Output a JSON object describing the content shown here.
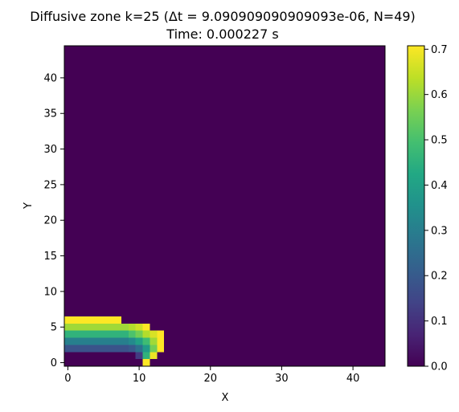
{
  "chart_data": {
    "type": "heatmap",
    "title_line1": "Diffusive zone k=25 (Δt = 9.090909090909093e-06, N=49)",
    "title_line2": "Time: 0.000227 s",
    "xlabel": "X",
    "ylabel": "Y",
    "xlim": [
      -0.5,
      44.5
    ],
    "ylim": [
      -0.5,
      44.5
    ],
    "xticks": [
      "0",
      "10",
      "20",
      "30",
      "40"
    ],
    "yticks": [
      "0",
      "5",
      "10",
      "15",
      "20",
      "25",
      "30",
      "35",
      "40"
    ],
    "colorbar": {
      "colormap": "viridis",
      "range": [
        0.0,
        0.7
      ],
      "ticks": [
        "0.0",
        "0.1",
        "0.2",
        "0.3",
        "0.4",
        "0.5",
        "0.6",
        "0.7"
      ]
    },
    "background_value": 0.0,
    "cells": [
      {
        "y": 6,
        "x_from": 0,
        "x_to": 7,
        "value": 0.7
      },
      {
        "y": 5,
        "x_from": 0,
        "x_to": 8,
        "value": 0.6
      },
      {
        "y": 5,
        "x_from": 9,
        "x_to": 9,
        "value": 0.62
      },
      {
        "y": 5,
        "x_from": 10,
        "x_to": 10,
        "value": 0.65
      },
      {
        "y": 5,
        "x_from": 11,
        "x_to": 11,
        "value": 0.7
      },
      {
        "y": 4,
        "x_from": 0,
        "x_to": 8,
        "value": 0.45
      },
      {
        "y": 4,
        "x_from": 9,
        "x_to": 9,
        "value": 0.5
      },
      {
        "y": 4,
        "x_from": 10,
        "x_to": 10,
        "value": 0.55
      },
      {
        "y": 4,
        "x_from": 11,
        "x_to": 11,
        "value": 0.62
      },
      {
        "y": 4,
        "x_from": 12,
        "x_to": 12,
        "value": 0.66
      },
      {
        "y": 4,
        "x_from": 13,
        "x_to": 13,
        "value": 0.7
      },
      {
        "y": 3,
        "x_from": 0,
        "x_to": 8,
        "value": 0.3
      },
      {
        "y": 3,
        "x_from": 9,
        "x_to": 9,
        "value": 0.33
      },
      {
        "y": 3,
        "x_from": 10,
        "x_to": 10,
        "value": 0.4
      },
      {
        "y": 3,
        "x_from": 11,
        "x_to": 11,
        "value": 0.48
      },
      {
        "y": 3,
        "x_from": 12,
        "x_to": 12,
        "value": 0.6
      },
      {
        "y": 3,
        "x_from": 13,
        "x_to": 13,
        "value": 0.7
      },
      {
        "y": 2,
        "x_from": 0,
        "x_to": 8,
        "value": 0.18
      },
      {
        "y": 2,
        "x_from": 9,
        "x_to": 9,
        "value": 0.2
      },
      {
        "y": 2,
        "x_from": 10,
        "x_to": 10,
        "value": 0.26
      },
      {
        "y": 2,
        "x_from": 11,
        "x_to": 11,
        "value": 0.38
      },
      {
        "y": 2,
        "x_from": 12,
        "x_to": 12,
        "value": 0.55
      },
      {
        "y": 2,
        "x_from": 13,
        "x_to": 13,
        "value": 0.7
      },
      {
        "y": 1,
        "x_from": 10,
        "x_to": 10,
        "value": 0.12
      },
      {
        "y": 1,
        "x_from": 11,
        "x_to": 11,
        "value": 0.45
      },
      {
        "y": 1,
        "x_from": 12,
        "x_to": 12,
        "value": 0.68
      },
      {
        "y": 0,
        "x_from": 11,
        "x_to": 11,
        "value": 0.7
      }
    ]
  }
}
